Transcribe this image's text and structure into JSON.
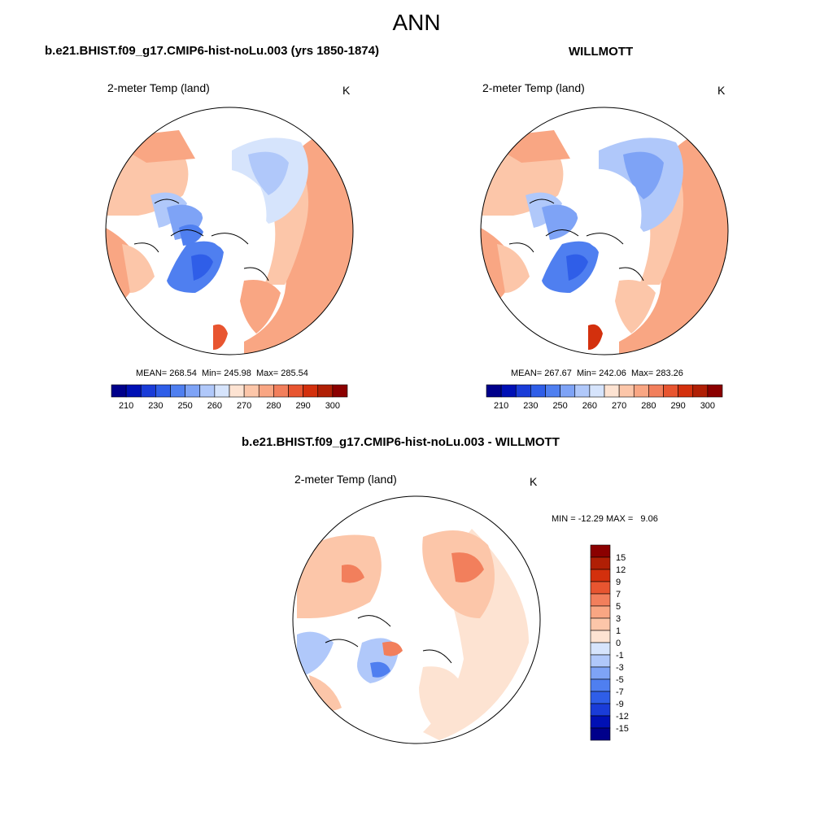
{
  "figure": {
    "title": "ANN",
    "colors": {
      "diverging": [
        "#00008b",
        "#0010b5",
        "#1a3cd8",
        "#2f5ee8",
        "#4f7ff0",
        "#7ea3f6",
        "#b0c8fa",
        "#d6e4fc",
        "#fde3d2",
        "#fcc6a9",
        "#f9a683",
        "#f27f5c",
        "#e85530",
        "#d3300d",
        "#b01f05",
        "#8b0000"
      ],
      "ocean": "#ffffff",
      "ice": "#ffffff",
      "coast": "#000000"
    }
  },
  "panels": {
    "model": {
      "title": "b.e21.BHIST.f09_g17.CMIP6-hist-noLu.003 (yrs 1850-1874)",
      "variable": "2-meter Temp (land)",
      "units": "K",
      "stats": "MEAN= 268.54  Min= 245.98  Max= 285.54",
      "colorbar_labels": [
        "210",
        "230",
        "250",
        "260",
        "270",
        "280",
        "290",
        "300"
      ]
    },
    "obs": {
      "title": "WILLMOTT",
      "variable": "2-meter Temp (land)",
      "units": "K",
      "stats": "MEAN= 267.67  Min= 242.06  Max= 283.26",
      "colorbar_labels": [
        "210",
        "230",
        "250",
        "260",
        "270",
        "280",
        "290",
        "300"
      ]
    },
    "diff": {
      "title": "b.e21.BHIST.f09_g17.CMIP6-hist-noLu.003 - WILLMOTT",
      "variable": "2-meter Temp (land)",
      "units": "K",
      "minmax": "MIN = -12.29 MAX =   9.06",
      "colorbar_labels": [
        "15",
        "12",
        "9",
        "7",
        "5",
        "3",
        "1",
        "0",
        "-1",
        "-3",
        "-5",
        "-7",
        "-9",
        "-12",
        "-15"
      ]
    }
  }
}
